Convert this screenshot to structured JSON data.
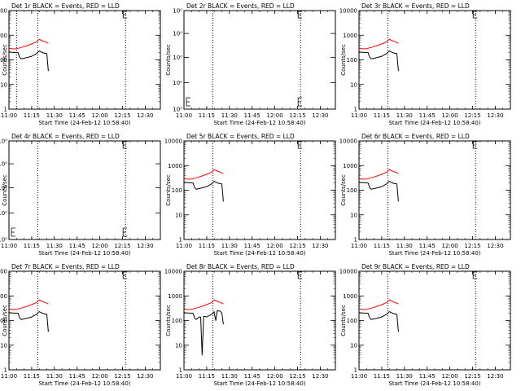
{
  "chart_data": [
    {
      "type": "line",
      "title": "Det 1r BLACK = Events, RED = LLD",
      "xlabel": "Start Time (24-Feb-12 10:58:40)",
      "ylabel": "Counts/sec",
      "yscale": "log",
      "ylim": [
        1,
        10000
      ],
      "y_ticks": [
        1,
        10,
        100,
        1000,
        10000
      ],
      "y_tick_labels": [
        "1",
        "10",
        "100",
        "1000",
        "10000"
      ],
      "xlim": [
        "11:00",
        "12:40"
      ],
      "x_ticks": [
        "11:00",
        "11:15",
        "11:30",
        "11:45",
        "12:00",
        "12:15",
        "12:30"
      ],
      "vlines": [
        "11:05",
        "11:19",
        "12:17"
      ],
      "has_data": true,
      "series": [
        {
          "color": "#000000",
          "x": [
            "11:00",
            "11:03",
            "11:05",
            "11:06",
            "11:07",
            "11:08",
            "11:12",
            "11:15",
            "11:18",
            "11:20",
            "11:22",
            "11:23",
            "11:23",
            "11:25",
            "11:26"
          ],
          "y": [
            210,
            200,
            200,
            195,
            130,
            110,
            125,
            140,
            175,
            230,
            200,
            190,
            190,
            180,
            35
          ]
        },
        {
          "color": "#ff0000",
          "x": [
            "11:00",
            "11:03",
            "11:05",
            "11:07",
            "11:09",
            "11:12",
            "11:15",
            "11:18",
            "11:20",
            "11:22",
            "11:24",
            "11:26"
          ],
          "y": [
            290,
            280,
            285,
            305,
            330,
            380,
            440,
            530,
            690,
            600,
            540,
            470
          ]
        }
      ]
    },
    {
      "type": "line",
      "title": "Det 2r BLACK = Events, RED = LLD",
      "xlabel": "Start Time (24-Feb-12 10:58:40)",
      "ylabel": "Counts/sec",
      "yscale": "log",
      "ylim": [
        0.9,
        1.1
      ],
      "y_ticks": [
        0.9,
        0.95,
        1.0,
        1.05,
        1.1
      ],
      "y_tick_labels": [
        "10⁰",
        "10⁰",
        "10⁰",
        "10⁰",
        "10⁰"
      ],
      "xlim": [
        "11:00",
        "12:40"
      ],
      "x_ticks": [
        "11:00",
        "11:15",
        "11:30",
        "11:45",
        "12:00",
        "12:15",
        "12:30"
      ],
      "vlines": [
        "11:19",
        "12:17"
      ],
      "has_data": false,
      "series": []
    },
    {
      "type": "line",
      "title": "Det 3r BLACK = Events, RED = LLD",
      "xlabel": "Start Time (24-Feb-12 10:58:40)",
      "ylabel": "Counts/sec",
      "yscale": "log",
      "ylim": [
        1,
        10000
      ],
      "y_ticks": [
        1,
        10,
        100,
        1000,
        10000
      ],
      "y_tick_labels": [
        "1",
        "10",
        "100",
        "1000",
        "10000"
      ],
      "xlim": [
        "11:00",
        "12:40"
      ],
      "x_ticks": [
        "11:00",
        "11:15",
        "11:30",
        "11:45",
        "12:00",
        "12:15",
        "12:30"
      ],
      "vlines": [
        "11:19",
        "12:17"
      ],
      "has_data": true,
      "series": [
        {
          "color": "#000000",
          "x": [
            "11:00",
            "11:03",
            "11:05",
            "11:06",
            "11:07",
            "11:08",
            "11:12",
            "11:15",
            "11:18",
            "11:20",
            "11:22",
            "11:23",
            "11:23",
            "11:25",
            "11:26"
          ],
          "y": [
            210,
            200,
            200,
            195,
            130,
            110,
            125,
            140,
            175,
            230,
            200,
            190,
            190,
            180,
            35
          ]
        },
        {
          "color": "#ff0000",
          "x": [
            "11:00",
            "11:03",
            "11:05",
            "11:07",
            "11:09",
            "11:12",
            "11:15",
            "11:18",
            "11:20",
            "11:22",
            "11:24",
            "11:26"
          ],
          "y": [
            290,
            280,
            285,
            305,
            330,
            380,
            440,
            530,
            690,
            600,
            540,
            470
          ]
        }
      ]
    },
    {
      "type": "line",
      "title": "Det 4r BLACK = Events, RED = LLD",
      "xlabel": "Start Time (24-Feb-12 10:58:40)",
      "ylabel": "Counts/sec",
      "yscale": "log",
      "ylim": [
        0.9,
        1.1
      ],
      "y_ticks": [
        0.9,
        0.95,
        1.0,
        1.05,
        1.1
      ],
      "y_tick_labels": [
        "10⁰",
        "10⁰",
        "10⁰",
        "10⁰",
        "10⁰"
      ],
      "xlim": [
        "11:00",
        "12:40"
      ],
      "x_ticks": [
        "11:00",
        "11:15",
        "11:30",
        "11:45",
        "12:00",
        "12:15",
        "12:30"
      ],
      "vlines": [
        "11:19",
        "12:17"
      ],
      "has_data": false,
      "series": []
    },
    {
      "type": "line",
      "title": "Det 5r BLACK = Events, RED = LLD",
      "xlabel": "Start Time (24-Feb-12 10:58:40)",
      "ylabel": "Counts/sec",
      "yscale": "log",
      "ylim": [
        1,
        10000
      ],
      "y_ticks": [
        1,
        10,
        100,
        1000,
        10000
      ],
      "y_tick_labels": [
        "1",
        "10",
        "100",
        "1000",
        "10000"
      ],
      "xlim": [
        "11:00",
        "12:40"
      ],
      "x_ticks": [
        "11:00",
        "11:15",
        "11:30",
        "11:45",
        "12:00",
        "12:15",
        "12:30"
      ],
      "vlines": [
        "11:19",
        "12:17"
      ],
      "has_data": true,
      "series": [
        {
          "color": "#000000",
          "x": [
            "11:00",
            "11:03",
            "11:05",
            "11:06",
            "11:07",
            "11:08",
            "11:12",
            "11:15",
            "11:18",
            "11:20",
            "11:22",
            "11:23",
            "11:23",
            "11:25",
            "11:26"
          ],
          "y": [
            210,
            200,
            200,
            195,
            130,
            110,
            125,
            140,
            175,
            230,
            200,
            190,
            190,
            180,
            35
          ]
        },
        {
          "color": "#ff0000",
          "x": [
            "11:00",
            "11:03",
            "11:05",
            "11:07",
            "11:09",
            "11:12",
            "11:15",
            "11:18",
            "11:20",
            "11:22",
            "11:24",
            "11:26"
          ],
          "y": [
            290,
            280,
            285,
            305,
            330,
            380,
            440,
            530,
            690,
            600,
            540,
            470
          ]
        }
      ]
    },
    {
      "type": "line",
      "title": "Det 6r BLACK = Events, RED = LLD",
      "xlabel": "Start Time (24-Feb-12 10:58:40)",
      "ylabel": "Counts/sec",
      "yscale": "log",
      "ylim": [
        1,
        10000
      ],
      "y_ticks": [
        1,
        10,
        100,
        1000,
        10000
      ],
      "y_tick_labels": [
        "1",
        "10",
        "100",
        "1000",
        "10000"
      ],
      "xlim": [
        "11:00",
        "12:40"
      ],
      "x_ticks": [
        "11:00",
        "11:15",
        "11:30",
        "11:45",
        "12:00",
        "12:15",
        "12:30"
      ],
      "vlines": [
        "11:19",
        "12:17"
      ],
      "has_data": true,
      "series": [
        {
          "color": "#000000",
          "x": [
            "11:00",
            "11:03",
            "11:05",
            "11:06",
            "11:07",
            "11:08",
            "11:12",
            "11:15",
            "11:18",
            "11:20",
            "11:22",
            "11:23",
            "11:23",
            "11:25",
            "11:26"
          ],
          "y": [
            210,
            200,
            200,
            195,
            130,
            110,
            125,
            140,
            175,
            230,
            200,
            190,
            190,
            180,
            35
          ]
        },
        {
          "color": "#ff0000",
          "x": [
            "11:00",
            "11:03",
            "11:05",
            "11:07",
            "11:09",
            "11:12",
            "11:15",
            "11:18",
            "11:20",
            "11:22",
            "11:24",
            "11:26"
          ],
          "y": [
            290,
            280,
            285,
            305,
            330,
            380,
            440,
            530,
            690,
            600,
            540,
            470
          ]
        }
      ]
    },
    {
      "type": "line",
      "title": "Det 7r BLACK = Events, RED = LLD",
      "xlabel": "Start Time (24-Feb-12 10:58:40)",
      "ylabel": "Counts/sec",
      "yscale": "log",
      "ylim": [
        1,
        10000
      ],
      "y_ticks": [
        1,
        10,
        100,
        1000,
        10000
      ],
      "y_tick_labels": [
        "1",
        "10",
        "100",
        "1000",
        "10000"
      ],
      "xlim": [
        "11:00",
        "12:40"
      ],
      "x_ticks": [
        "11:00",
        "11:15",
        "11:30",
        "11:45",
        "12:00",
        "12:15",
        "12:30"
      ],
      "vlines": [
        "11:19",
        "12:17"
      ],
      "has_data": true,
      "series": [
        {
          "color": "#000000",
          "x": [
            "11:00",
            "11:03",
            "11:05",
            "11:06",
            "11:07",
            "11:08",
            "11:12",
            "11:15",
            "11:18",
            "11:20",
            "11:22",
            "11:23",
            "11:23",
            "11:25",
            "11:26"
          ],
          "y": [
            210,
            200,
            200,
            195,
            130,
            110,
            125,
            140,
            175,
            230,
            200,
            190,
            190,
            180,
            35
          ]
        },
        {
          "color": "#ff0000",
          "x": [
            "11:00",
            "11:03",
            "11:05",
            "11:07",
            "11:09",
            "11:12",
            "11:15",
            "11:18",
            "11:20",
            "11:22",
            "11:24",
            "11:26"
          ],
          "y": [
            290,
            280,
            285,
            305,
            330,
            380,
            440,
            530,
            690,
            600,
            540,
            470
          ]
        }
      ]
    },
    {
      "type": "line",
      "title": "Det 8r BLACK = Events, RED = LLD",
      "xlabel": "Start Time (24-Feb-12 10:58:40)",
      "ylabel": "Counts/sec",
      "yscale": "log",
      "ylim": [
        1,
        10000
      ],
      "y_ticks": [
        1,
        10,
        100,
        1000,
        10000
      ],
      "y_tick_labels": [
        "1",
        "10",
        "100",
        "1000",
        "10000"
      ],
      "xlim": [
        "11:00",
        "12:40"
      ],
      "x_ticks": [
        "11:00",
        "11:15",
        "11:30",
        "11:45",
        "12:00",
        "12:15",
        "12:30"
      ],
      "vlines": [
        "11:19",
        "12:17"
      ],
      "has_data": true,
      "series": [
        {
          "color": "#000000",
          "x": [
            "11:00",
            "11:03",
            "11:05",
            "11:06",
            "11:07",
            "11:08",
            "11:10",
            "11:11",
            "11:12",
            "11:13",
            "11:15",
            "11:18",
            "11:20",
            "11:20",
            "11:21",
            "11:22",
            "11:24",
            "11:25",
            "11:26"
          ],
          "y": [
            210,
            200,
            200,
            195,
            130,
            110,
            140,
            140,
            4,
            150,
            140,
            175,
            230,
            200,
            100,
            250,
            240,
            200,
            70
          ]
        },
        {
          "color": "#ff0000",
          "x": [
            "11:00",
            "11:03",
            "11:05",
            "11:07",
            "11:09",
            "11:12",
            "11:15",
            "11:18",
            "11:20",
            "11:22",
            "11:24",
            "11:26"
          ],
          "y": [
            290,
            280,
            285,
            305,
            330,
            380,
            440,
            530,
            690,
            600,
            540,
            470
          ]
        }
      ]
    },
    {
      "type": "line",
      "title": "Det 9r BLACK = Events, RED = LLD",
      "xlabel": "Start Time (24-Feb-12 10:58:40)",
      "ylabel": "Counts/sec",
      "yscale": "log",
      "ylim": [
        1,
        10000
      ],
      "y_ticks": [
        1,
        10,
        100,
        1000,
        10000
      ],
      "y_tick_labels": [
        "1",
        "10",
        "100",
        "1000",
        "10000"
      ],
      "xlim": [
        "11:00",
        "12:40"
      ],
      "x_ticks": [
        "11:00",
        "11:15",
        "11:30",
        "11:45",
        "12:00",
        "12:15",
        "12:30"
      ],
      "vlines": [
        "11:19",
        "12:17"
      ],
      "has_data": true,
      "series": [
        {
          "color": "#000000",
          "x": [
            "11:00",
            "11:03",
            "11:05",
            "11:06",
            "11:07",
            "11:08",
            "11:12",
            "11:15",
            "11:18",
            "11:20",
            "11:22",
            "11:23",
            "11:23",
            "11:25",
            "11:26"
          ],
          "y": [
            210,
            200,
            200,
            195,
            130,
            110,
            125,
            140,
            175,
            230,
            200,
            190,
            190,
            180,
            35
          ]
        },
        {
          "color": "#ff0000",
          "x": [
            "11:00",
            "11:03",
            "11:05",
            "11:07",
            "11:09",
            "11:12",
            "11:15",
            "11:18",
            "11:20",
            "11:22",
            "11:24",
            "11:26"
          ],
          "y": [
            290,
            280,
            285,
            305,
            330,
            380,
            440,
            530,
            690,
            600,
            540,
            470
          ]
        }
      ]
    }
  ]
}
